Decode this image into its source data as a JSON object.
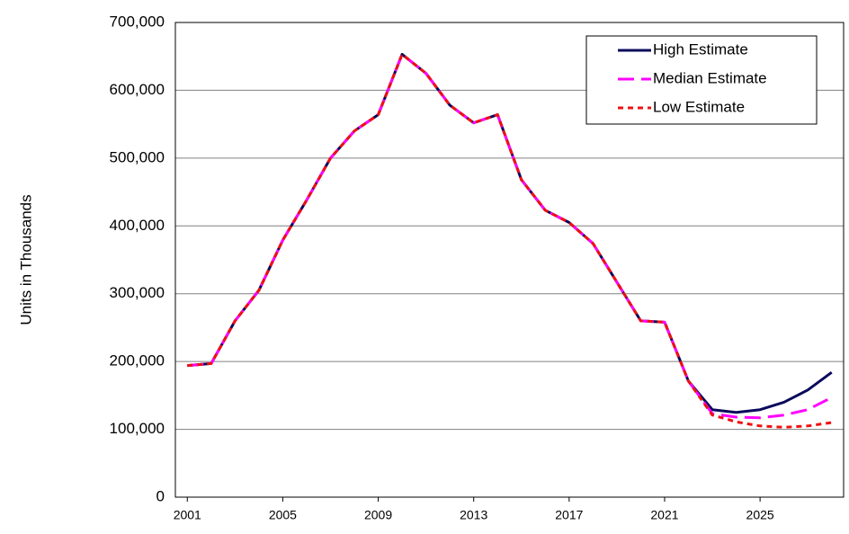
{
  "chart_data": {
    "type": "line",
    "y_label": "Units in Thousands",
    "x": [
      2001,
      2002,
      2003,
      2004,
      2005,
      2006,
      2007,
      2008,
      2009,
      2010,
      2011,
      2012,
      2013,
      2014,
      2015,
      2016,
      2017,
      2018,
      2019,
      2020,
      2021,
      2022,
      2023,
      2024,
      2025,
      2026,
      2027,
      2028
    ],
    "series": [
      {
        "name": "High Estimate",
        "color": "#0a0a5c",
        "dash": "solid",
        "values": [
          194000,
          197000,
          260000,
          305000,
          379000,
          438000,
          500000,
          540000,
          564000,
          653000,
          625000,
          578000,
          552000,
          564000,
          468000,
          423000,
          405000,
          374000,
          317000,
          260000,
          258000,
          171000,
          129000,
          125000,
          129000,
          140000,
          158000,
          184000
        ]
      },
      {
        "name": "Median Estimate",
        "color": "#ff00ff",
        "dash": "dashed",
        "values": [
          194000,
          197000,
          260000,
          305000,
          379000,
          438000,
          500000,
          540000,
          564000,
          653000,
          625000,
          578000,
          552000,
          564000,
          468000,
          423000,
          405000,
          374000,
          317000,
          260000,
          258000,
          171000,
          123000,
          118000,
          117000,
          121000,
          129000,
          147000
        ]
      },
      {
        "name": "Low Estimate",
        "color": "#ee1111",
        "dash": "dotted",
        "values": [
          194000,
          197000,
          260000,
          305000,
          379000,
          438000,
          500000,
          540000,
          564000,
          653000,
          625000,
          578000,
          552000,
          564000,
          468000,
          423000,
          405000,
          374000,
          317000,
          260000,
          258000,
          171000,
          121000,
          111000,
          105000,
          103000,
          105000,
          110000
        ]
      }
    ],
    "xlim": [
      2000.5,
      2028.5
    ],
    "xticks": [
      2001,
      2005,
      2009,
      2013,
      2017,
      2021,
      2025
    ],
    "ylim": [
      0,
      700000
    ],
    "yticks": [
      0,
      {
        "value": 100000,
        "label": "100,000"
      },
      {
        "value": 200000,
        "label": "200,000"
      },
      {
        "value": 300000,
        "label": "300,000"
      },
      {
        "value": 400000,
        "label": "400,000"
      },
      {
        "value": 500000,
        "label": "500,000"
      },
      {
        "value": 600000,
        "label": "600,000"
      },
      {
        "value": 700000,
        "label": "700,000"
      }
    ],
    "grid": true,
    "legend": "top-right"
  }
}
